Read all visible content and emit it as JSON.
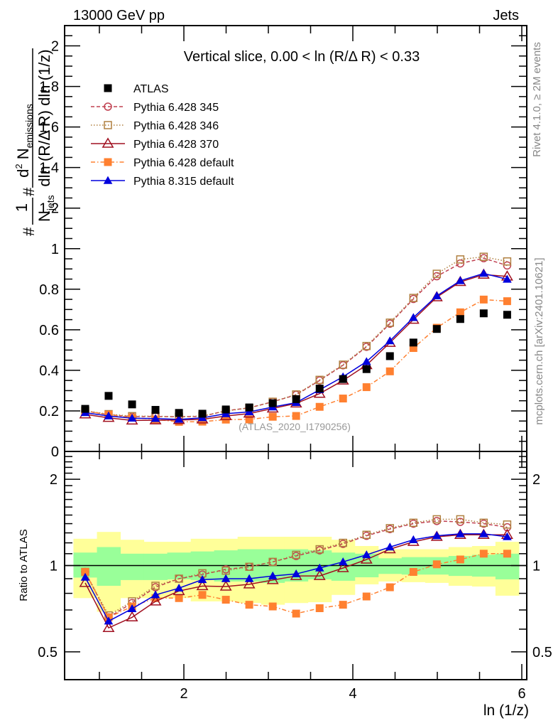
{
  "header": {
    "left_label": "13000 GeV pp",
    "right_label": "Jets"
  },
  "side_labels": {
    "rivet": "Rivet 4.1.0, ≥ 2M events",
    "mcplots": "mcplots.cern.ch [arXiv:2401.10621]"
  },
  "chart_data": [
    {
      "type": "line",
      "panel": "main",
      "title": "Vertical slice, 0.00 < ln (R/Δ R) < 0.33",
      "watermark": "(ATLAS_2020_I1790256)",
      "xlabel": "ln (1/z)",
      "ylabel": "#frac{1}{N_{jets}} #frac{d^{2} N_{emissions}}{dln (R/Δ R) dln (1/z)}",
      "ylabel_parts": {
        "prefix": "#",
        "frac1_num": "1",
        "frac1_den": "N",
        "frac1_den_sub": "jets",
        "hash": "#",
        "frac2_num": "d",
        "frac2_num_sup": "2",
        "frac2_num_main": " N",
        "frac2_num_sub": "emissions",
        "frac2_den": "dln (R/Δ R) dln (1/z)"
      },
      "xlim": [
        0.59,
        6.07
      ],
      "ylim": [
        0,
        2.1
      ],
      "y_scale": "linear",
      "x_ticks": [
        2,
        4,
        6
      ],
      "y_ticks": [
        0,
        0.2,
        0.4,
        0.6,
        0.8,
        1,
        1.2,
        1.4,
        1.6,
        1.8,
        2
      ],
      "y_tick_labels": [
        "0",
        "0.2",
        "0.4",
        "0.6",
        "0.8",
        "1",
        "1.2",
        "1.4",
        "1.6",
        "1.8",
        "2"
      ],
      "bin_edges": [
        0.693,
        0.971,
        1.248,
        1.526,
        1.803,
        2.081,
        2.358,
        2.636,
        2.913,
        3.191,
        3.468,
        3.746,
        4.023,
        4.301,
        4.578,
        4.856,
        5.133,
        5.411,
        5.688,
        5.966
      ],
      "x": [
        0.832,
        1.109,
        1.387,
        1.664,
        1.942,
        2.219,
        2.497,
        2.774,
        3.052,
        3.329,
        3.607,
        3.884,
        4.162,
        4.439,
        4.717,
        4.994,
        5.272,
        5.549,
        5.827
      ],
      "legend_position": "top-left",
      "series": [
        {
          "name": "ATLAS",
          "color": "#000000",
          "marker": "filled-square",
          "line": "none",
          "values": [
            0.21,
            0.274,
            0.232,
            0.205,
            0.19,
            0.186,
            0.207,
            0.217,
            0.238,
            0.258,
            0.31,
            0.357,
            0.406,
            0.47,
            0.537,
            0.604,
            0.653,
            0.681,
            0.674
          ]
        },
        {
          "name": "Pythia 6.428 345",
          "color": "#c04050",
          "marker": "open-circle",
          "line": "dashed",
          "values": [
            0.2,
            0.181,
            0.172,
            0.172,
            0.171,
            0.173,
            0.201,
            0.215,
            0.245,
            0.279,
            0.35,
            0.425,
            0.516,
            0.63,
            0.752,
            0.864,
            0.927,
            0.953,
            0.917
          ]
        },
        {
          "name": "Pythia 6.428 346",
          "color": "#b08040",
          "marker": "open-square",
          "line": "dotted",
          "values": [
            0.2,
            0.184,
            0.174,
            0.174,
            0.171,
            0.175,
            0.199,
            0.215,
            0.245,
            0.281,
            0.353,
            0.428,
            0.52,
            0.635,
            0.757,
            0.876,
            0.947,
            0.96,
            0.937
          ]
        },
        {
          "name": "Pythia 6.428 370",
          "color": "#a01020",
          "marker": "open-triangle",
          "line": "solid",
          "values": [
            0.183,
            0.166,
            0.153,
            0.154,
            0.155,
            0.158,
            0.175,
            0.187,
            0.212,
            0.237,
            0.285,
            0.35,
            0.426,
            0.536,
            0.65,
            0.761,
            0.836,
            0.872,
            0.863
          ]
        },
        {
          "name": "Pythia 6.428 default",
          "color": "#ff8030",
          "marker": "filled-square",
          "line": "dash-dot",
          "values": [
            0.2,
            0.181,
            0.167,
            0.158,
            0.146,
            0.147,
            0.157,
            0.158,
            0.171,
            0.175,
            0.22,
            0.261,
            0.317,
            0.395,
            0.51,
            0.61,
            0.686,
            0.749,
            0.741
          ]
        },
        {
          "name": "Pythia 8.315 default",
          "color": "#0000dd",
          "marker": "filled-triangle",
          "line": "solid",
          "values": [
            0.191,
            0.175,
            0.164,
            0.162,
            0.158,
            0.166,
            0.186,
            0.195,
            0.219,
            0.241,
            0.304,
            0.368,
            0.443,
            0.545,
            0.66,
            0.767,
            0.842,
            0.878,
            0.849
          ]
        }
      ]
    },
    {
      "type": "line",
      "panel": "ratio",
      "ylabel": "Ratio to ATLAS",
      "xlabel": "ln (1/z)",
      "xlim": [
        0.59,
        6.07
      ],
      "ylim": [
        0.4,
        2.5
      ],
      "y_scale": "log",
      "x_ticks": [
        2,
        4,
        6
      ],
      "x_tick_labels": [
        "2",
        "4",
        "6"
      ],
      "y_ticks": [
        0.5,
        1,
        2
      ],
      "y_tick_labels": [
        "0.5",
        "1",
        "2"
      ],
      "reference_line": 1,
      "bands": {
        "stat": {
          "color": "#99ff99",
          "lo": [
            0.908,
            0.85,
            0.89,
            0.89,
            0.895,
            0.89,
            0.88,
            0.88,
            0.87,
            0.88,
            0.895,
            0.885,
            0.91,
            0.935,
            0.93,
            0.93,
            0.92,
            0.915,
            0.895
          ],
          "hi": [
            1.11,
            1.16,
            1.1,
            1.1,
            1.11,
            1.12,
            1.13,
            1.14,
            1.14,
            1.14,
            1.13,
            1.11,
            1.1,
            1.06,
            1.07,
            1.07,
            1.08,
            1.09,
            1.1
          ]
        },
        "total": {
          "color": "#ffff99",
          "lo": [
            0.77,
            0.69,
            0.77,
            0.77,
            0.77,
            0.75,
            0.75,
            0.74,
            0.73,
            0.74,
            0.745,
            0.79,
            0.86,
            0.88,
            0.875,
            0.87,
            0.85,
            0.845,
            0.785
          ],
          "hi": [
            1.24,
            1.31,
            1.23,
            1.21,
            1.21,
            1.24,
            1.24,
            1.26,
            1.26,
            1.26,
            1.26,
            1.23,
            1.17,
            1.14,
            1.14,
            1.14,
            1.16,
            1.17,
            1.21
          ]
        }
      },
      "series": [
        {
          "name": "Pythia 6.428 345",
          "values": [
            0.95,
            0.66,
            0.74,
            0.84,
            0.9,
            0.93,
            0.97,
            0.99,
            1.03,
            1.08,
            1.13,
            1.19,
            1.27,
            1.34,
            1.4,
            1.43,
            1.42,
            1.4,
            1.36
          ]
        },
        {
          "name": "Pythia 6.428 346",
          "values": [
            0.95,
            0.67,
            0.75,
            0.85,
            0.9,
            0.94,
            0.96,
            0.99,
            1.03,
            1.09,
            1.14,
            1.2,
            1.28,
            1.35,
            1.41,
            1.45,
            1.45,
            1.41,
            1.39
          ]
        },
        {
          "name": "Pythia 6.428 370",
          "values": [
            0.87,
            0.606,
            0.66,
            0.75,
            0.815,
            0.848,
            0.845,
            0.86,
            0.89,
            0.92,
            0.92,
            0.98,
            1.05,
            1.14,
            1.21,
            1.26,
            1.28,
            1.28,
            1.28
          ]
        },
        {
          "name": "Pythia 6.428 default",
          "values": [
            0.95,
            0.66,
            0.72,
            0.77,
            0.77,
            0.79,
            0.76,
            0.73,
            0.72,
            0.68,
            0.71,
            0.73,
            0.78,
            0.84,
            0.95,
            1.01,
            1.05,
            1.1,
            1.1
          ]
        },
        {
          "name": "Pythia 8.315 default",
          "values": [
            0.91,
            0.64,
            0.707,
            0.79,
            0.834,
            0.893,
            0.9,
            0.9,
            0.92,
            0.935,
            0.98,
            1.03,
            1.09,
            1.16,
            1.23,
            1.27,
            1.29,
            1.29,
            1.26
          ]
        }
      ]
    }
  ]
}
